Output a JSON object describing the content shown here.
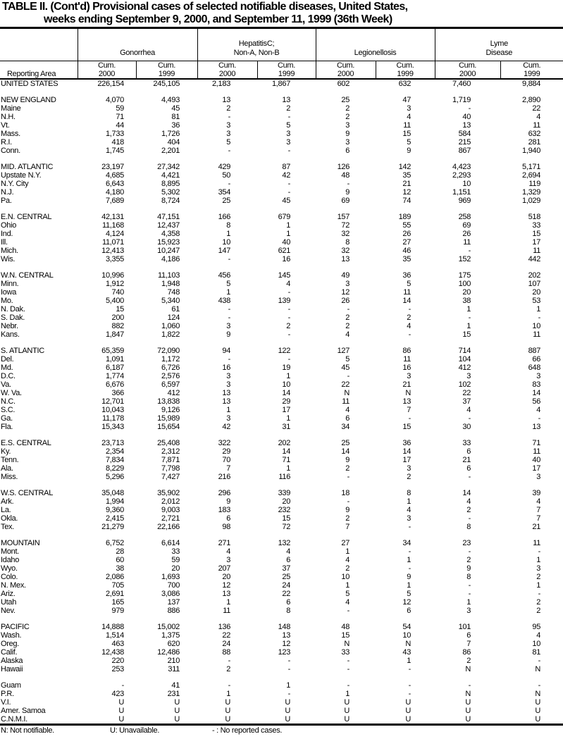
{
  "title": {
    "line1": "TABLE II. (Cont'd) Provisional cases of selected notifiable diseases, United States,",
    "line2": "weeks ending September 9, 2000, and September 11, 1999 (36th Week)"
  },
  "header": {
    "reporting_area": "Reporting Area",
    "groups": [
      "Gonorrhea",
      "HepatitisC; Non-A, Non-B",
      "Legionellosis",
      "Lyme Disease"
    ],
    "group_lines": [
      [
        "Gonorrhea"
      ],
      [
        "HepatitisC;",
        "Non-A, Non-B"
      ],
      [
        "Legionellosis"
      ],
      [
        "Lyme",
        "Disease"
      ]
    ],
    "subcolumns": [
      {
        "top": "Cum.",
        "year": "2000"
      },
      {
        "top": "Cum.",
        "year": "1999"
      },
      {
        "top": "Cum.",
        "year": "2000"
      },
      {
        "top": "Cum.",
        "year": "1999"
      },
      {
        "top": "Cum.",
        "year": "2000"
      },
      {
        "top": "Cum.",
        "year": "1999"
      },
      {
        "top": "Cum.",
        "year": "2000"
      },
      {
        "top": "Cum.",
        "year": "1999"
      }
    ]
  },
  "sections": [
    [
      [
        "UNITED STATES",
        "226,154",
        "245,105",
        "2,183",
        "1,867",
        "602",
        "632",
        "7,460",
        "9,884"
      ]
    ],
    [
      [
        "NEW ENGLAND",
        "4,070",
        "4,493",
        "13",
        "13",
        "25",
        "47",
        "1,719",
        "2,890"
      ],
      [
        "Maine",
        "59",
        "45",
        "2",
        "2",
        "2",
        "3",
        "-",
        "22"
      ],
      [
        "N.H.",
        "71",
        "81",
        "-",
        "-",
        "2",
        "4",
        "40",
        "4"
      ],
      [
        "Vt.",
        "44",
        "36",
        "3",
        "5",
        "3",
        "11",
        "13",
        "11"
      ],
      [
        "Mass.",
        "1,733",
        "1,726",
        "3",
        "3",
        "9",
        "15",
        "584",
        "632"
      ],
      [
        "R.I.",
        "418",
        "404",
        "5",
        "3",
        "3",
        "5",
        "215",
        "281"
      ],
      [
        "Conn.",
        "1,745",
        "2,201",
        "-",
        "-",
        "6",
        "9",
        "867",
        "1,940"
      ]
    ],
    [
      [
        "MID. ATLANTIC",
        "23,197",
        "27,342",
        "429",
        "87",
        "126",
        "142",
        "4,423",
        "5,171"
      ],
      [
        "Upstate N.Y.",
        "4,685",
        "4,421",
        "50",
        "42",
        "48",
        "35",
        "2,293",
        "2,694"
      ],
      [
        "N.Y. City",
        "6,643",
        "8,895",
        "-",
        "-",
        "-",
        "21",
        "10",
        "119"
      ],
      [
        "N.J.",
        "4,180",
        "5,302",
        "354",
        "-",
        "9",
        "12",
        "1,151",
        "1,329"
      ],
      [
        "Pa.",
        "7,689",
        "8,724",
        "25",
        "45",
        "69",
        "74",
        "969",
        "1,029"
      ]
    ],
    [
      [
        "E.N. CENTRAL",
        "42,131",
        "47,151",
        "166",
        "679",
        "157",
        "189",
        "258",
        "518"
      ],
      [
        "Ohio",
        "11,168",
        "12,437",
        "8",
        "1",
        "72",
        "55",
        "69",
        "33"
      ],
      [
        "Ind.",
        "4,124",
        "4,358",
        "1",
        "1",
        "32",
        "26",
        "26",
        "15"
      ],
      [
        "Ill.",
        "11,071",
        "15,923",
        "10",
        "40",
        "8",
        "27",
        "11",
        "17"
      ],
      [
        "Mich.",
        "12,413",
        "10,247",
        "147",
        "621",
        "32",
        "46",
        "-",
        "11"
      ],
      [
        "Wis.",
        "3,355",
        "4,186",
        "-",
        "16",
        "13",
        "35",
        "152",
        "442"
      ]
    ],
    [
      [
        "W.N. CENTRAL",
        "10,996",
        "11,103",
        "456",
        "145",
        "49",
        "36",
        "175",
        "202"
      ],
      [
        "Minn.",
        "1,912",
        "1,948",
        "5",
        "4",
        "3",
        "5",
        "100",
        "107"
      ],
      [
        "Iowa",
        "740",
        "748",
        "1",
        "-",
        "12",
        "11",
        "20",
        "20"
      ],
      [
        "Mo.",
        "5,400",
        "5,340",
        "438",
        "139",
        "26",
        "14",
        "38",
        "53"
      ],
      [
        "N. Dak.",
        "15",
        "61",
        "-",
        "-",
        "-",
        "-",
        "1",
        "1"
      ],
      [
        "S. Dak.",
        "200",
        "124",
        "-",
        "-",
        "2",
        "2",
        "-",
        "-"
      ],
      [
        "Nebr.",
        "882",
        "1,060",
        "3",
        "2",
        "2",
        "4",
        "1",
        "10"
      ],
      [
        "Kans.",
        "1,847",
        "1,822",
        "9",
        "-",
        "4",
        "-",
        "15",
        "11"
      ]
    ],
    [
      [
        "S. ATLANTIC",
        "65,359",
        "72,090",
        "94",
        "122",
        "127",
        "86",
        "714",
        "887"
      ],
      [
        "Del.",
        "1,091",
        "1,172",
        "-",
        "-",
        "5",
        "11",
        "104",
        "66"
      ],
      [
        "Md.",
        "6,187",
        "6,726",
        "16",
        "19",
        "45",
        "16",
        "412",
        "648"
      ],
      [
        "D.C.",
        "1,774",
        "2,576",
        "3",
        "1",
        "-",
        "3",
        "3",
        "3"
      ],
      [
        "Va.",
        "6,676",
        "6,597",
        "3",
        "10",
        "22",
        "21",
        "102",
        "83"
      ],
      [
        "W. Va.",
        "366",
        "412",
        "13",
        "14",
        "N",
        "N",
        "22",
        "14"
      ],
      [
        "N.C.",
        "12,701",
        "13,838",
        "13",
        "29",
        "11",
        "13",
        "37",
        "56"
      ],
      [
        "S.C.",
        "10,043",
        "9,126",
        "1",
        "17",
        "4",
        "7",
        "4",
        "4"
      ],
      [
        "Ga.",
        "11,178",
        "15,989",
        "3",
        "1",
        "6",
        "-",
        "-",
        "-"
      ],
      [
        "Fla.",
        "15,343",
        "15,654",
        "42",
        "31",
        "34",
        "15",
        "30",
        "13"
      ]
    ],
    [
      [
        "E.S. CENTRAL",
        "23,713",
        "25,408",
        "322",
        "202",
        "25",
        "36",
        "33",
        "71"
      ],
      [
        "Ky.",
        "2,354",
        "2,312",
        "29",
        "14",
        "14",
        "14",
        "6",
        "11"
      ],
      [
        "Tenn.",
        "7,834",
        "7,871",
        "70",
        "71",
        "9",
        "17",
        "21",
        "40"
      ],
      [
        "Ala.",
        "8,229",
        "7,798",
        "7",
        "1",
        "2",
        "3",
        "6",
        "17"
      ],
      [
        "Miss.",
        "5,296",
        "7,427",
        "216",
        "116",
        "-",
        "2",
        "-",
        "3"
      ]
    ],
    [
      [
        "W.S. CENTRAL",
        "35,048",
        "35,902",
        "296",
        "339",
        "18",
        "8",
        "14",
        "39"
      ],
      [
        "Ark.",
        "1,994",
        "2,012",
        "9",
        "20",
        "-",
        "1",
        "4",
        "4"
      ],
      [
        "La.",
        "9,360",
        "9,003",
        "183",
        "232",
        "9",
        "4",
        "2",
        "7"
      ],
      [
        "Okla.",
        "2,415",
        "2,721",
        "6",
        "15",
        "2",
        "3",
        "-",
        "7"
      ],
      [
        "Tex.",
        "21,279",
        "22,166",
        "98",
        "72",
        "7",
        "-",
        "8",
        "21"
      ]
    ],
    [
      [
        "MOUNTAIN",
        "6,752",
        "6,614",
        "271",
        "132",
        "27",
        "34",
        "23",
        "11"
      ],
      [
        "Mont.",
        "28",
        "33",
        "4",
        "4",
        "1",
        "-",
        "-",
        "-"
      ],
      [
        "Idaho",
        "60",
        "59",
        "3",
        "6",
        "4",
        "1",
        "2",
        "1"
      ],
      [
        "Wyo.",
        "38",
        "20",
        "207",
        "37",
        "2",
        "-",
        "9",
        "3"
      ],
      [
        "Colo.",
        "2,086",
        "1,693",
        "20",
        "25",
        "10",
        "9",
        "8",
        "2"
      ],
      [
        "N. Mex.",
        "705",
        "700",
        "12",
        "24",
        "1",
        "1",
        "-",
        "1"
      ],
      [
        "Ariz.",
        "2,691",
        "3,086",
        "13",
        "22",
        "5",
        "5",
        "-",
        "-"
      ],
      [
        "Utah",
        "165",
        "137",
        "1",
        "6",
        "4",
        "12",
        "1",
        "2"
      ],
      [
        "Nev.",
        "979",
        "886",
        "11",
        "8",
        "-",
        "6",
        "3",
        "2"
      ]
    ],
    [
      [
        "PACIFIC",
        "14,888",
        "15,002",
        "136",
        "148",
        "48",
        "54",
        "101",
        "95"
      ],
      [
        "Wash.",
        "1,514",
        "1,375",
        "22",
        "13",
        "15",
        "10",
        "6",
        "4"
      ],
      [
        "Oreg.",
        "463",
        "620",
        "24",
        "12",
        "N",
        "N",
        "7",
        "10"
      ],
      [
        "Calif.",
        "12,438",
        "12,486",
        "88",
        "123",
        "33",
        "43",
        "86",
        "81"
      ],
      [
        "Alaska",
        "220",
        "210",
        "-",
        "-",
        "-",
        "1",
        "2",
        "-"
      ],
      [
        "Hawaii",
        "253",
        "311",
        "2",
        "-",
        "-",
        "-",
        "N",
        "N"
      ]
    ],
    [
      [
        "Guam",
        "-",
        "41",
        "-",
        "1",
        "-",
        "-",
        "-",
        "-"
      ],
      [
        "P.R.",
        "423",
        "231",
        "1",
        "-",
        "1",
        "-",
        "N",
        "N"
      ],
      [
        "V.I.",
        "U",
        "U",
        "U",
        "U",
        "U",
        "U",
        "U",
        "U"
      ],
      [
        "Amer. Samoa",
        "U",
        "U",
        "U",
        "U",
        "U",
        "U",
        "U",
        "U"
      ],
      [
        "C.N.M.I.",
        "U",
        "U",
        "U",
        "U",
        "U",
        "U",
        "U",
        "U"
      ]
    ]
  ],
  "footnotes": {
    "n": "N: Not notifiable.",
    "u": "U: Unavailable.",
    "dash": "- : No reported cases."
  }
}
